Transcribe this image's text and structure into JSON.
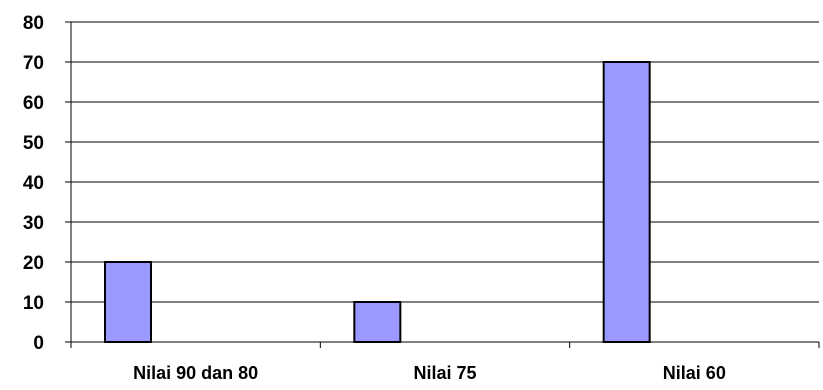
{
  "chart_data": {
    "type": "bar",
    "title": "",
    "xlabel": "",
    "ylabel": "",
    "categories": [
      "Nilai 90 dan 80",
      "Nilai 75",
      "Nilai 60"
    ],
    "values": [
      20,
      10,
      70
    ],
    "ylim": [
      0,
      80
    ],
    "yticks": [
      0,
      10,
      20,
      30,
      40,
      50,
      60,
      70,
      80
    ],
    "grid": true,
    "legend": "none",
    "bar_color": "#9999ff",
    "bar_edge_color": "#000000"
  }
}
